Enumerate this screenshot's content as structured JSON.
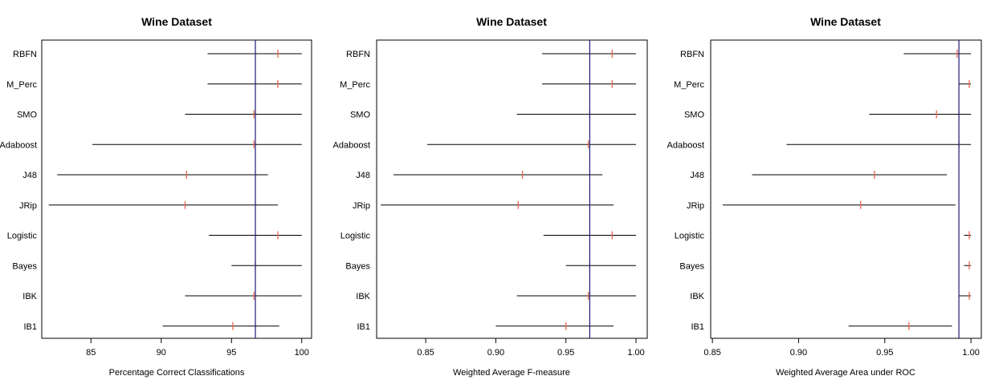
{
  "chart_data": [
    {
      "type": "interval",
      "title": "Wine Dataset",
      "xlabel": "Percentage Correct Classifications",
      "ylabel": "",
      "xlim": [
        81.5,
        100.7
      ],
      "xticks": [
        85,
        90,
        95,
        100
      ],
      "xtick_labels": [
        "85",
        "90",
        "95",
        "100"
      ],
      "reference_line": 96.7,
      "categories": [
        "RBFN",
        "M_Perc",
        "SMO",
        "Adaboost",
        "J48",
        "JRip",
        "Logistic",
        "Bayes",
        "IBK",
        "IB1"
      ],
      "low": [
        93.3,
        93.3,
        91.7,
        85.1,
        82.6,
        82.0,
        93.4,
        95.0,
        91.7,
        90.1
      ],
      "high": [
        100.0,
        100.0,
        100.0,
        100.0,
        97.6,
        98.3,
        100.0,
        100.0,
        100.0,
        98.4
      ],
      "point": [
        98.3,
        98.3,
        96.6,
        96.6,
        91.8,
        91.7,
        98.3,
        96.7,
        96.6,
        95.1
      ]
    },
    {
      "type": "interval",
      "title": "Wine Dataset",
      "xlabel": "Weighted Average F-measure",
      "ylabel": "",
      "xlim": [
        0.815,
        1.008
      ],
      "xticks": [
        0.85,
        0.9,
        0.95,
        1.0
      ],
      "xtick_labels": [
        "0.85",
        "0.90",
        "0.95",
        "1.00"
      ],
      "reference_line": 0.967,
      "categories": [
        "RBFN",
        "M_Perc",
        "SMO",
        "Adaboost",
        "J48",
        "JRip",
        "Logistic",
        "Bayes",
        "IBK",
        "IB1"
      ],
      "low": [
        0.933,
        0.933,
        0.915,
        0.851,
        0.827,
        0.818,
        0.934,
        0.95,
        0.915,
        0.9
      ],
      "high": [
        1.0,
        1.0,
        1.0,
        1.0,
        0.976,
        0.984,
        1.0,
        1.0,
        1.0,
        0.984
      ],
      "point": [
        0.983,
        0.983,
        0.967,
        0.966,
        0.919,
        0.916,
        0.983,
        0.967,
        0.966,
        0.95
      ]
    },
    {
      "type": "interval",
      "title": "Wine Dataset",
      "xlabel": "Weighted Average Area under ROC",
      "ylabel": "",
      "xlim": [
        0.849,
        1.006
      ],
      "xticks": [
        0.85,
        0.9,
        0.95,
        1.0
      ],
      "xtick_labels": [
        "0.85",
        "0.90",
        "0.95",
        "1.00"
      ],
      "reference_line": 0.993,
      "categories": [
        "RBFN",
        "M_Perc",
        "SMO",
        "Adaboost",
        "J48",
        "JRip",
        "Logistic",
        "Bayes",
        "IBK",
        "IB1"
      ],
      "low": [
        0.961,
        0.993,
        0.941,
        0.893,
        0.873,
        0.856,
        0.996,
        0.996,
        0.993,
        0.929
      ],
      "high": [
        1.0,
        1.0,
        1.0,
        1.0,
        0.986,
        0.991,
        1.0,
        1.0,
        1.0,
        0.989
      ],
      "point": [
        0.992,
        0.999,
        0.98,
        0.993,
        0.944,
        0.936,
        0.999,
        0.999,
        0.999,
        0.964
      ]
    }
  ],
  "colors": {
    "interval": "#000000",
    "point": "#e8674f",
    "reference": "#1f1a7a",
    "axis": "#000000"
  }
}
